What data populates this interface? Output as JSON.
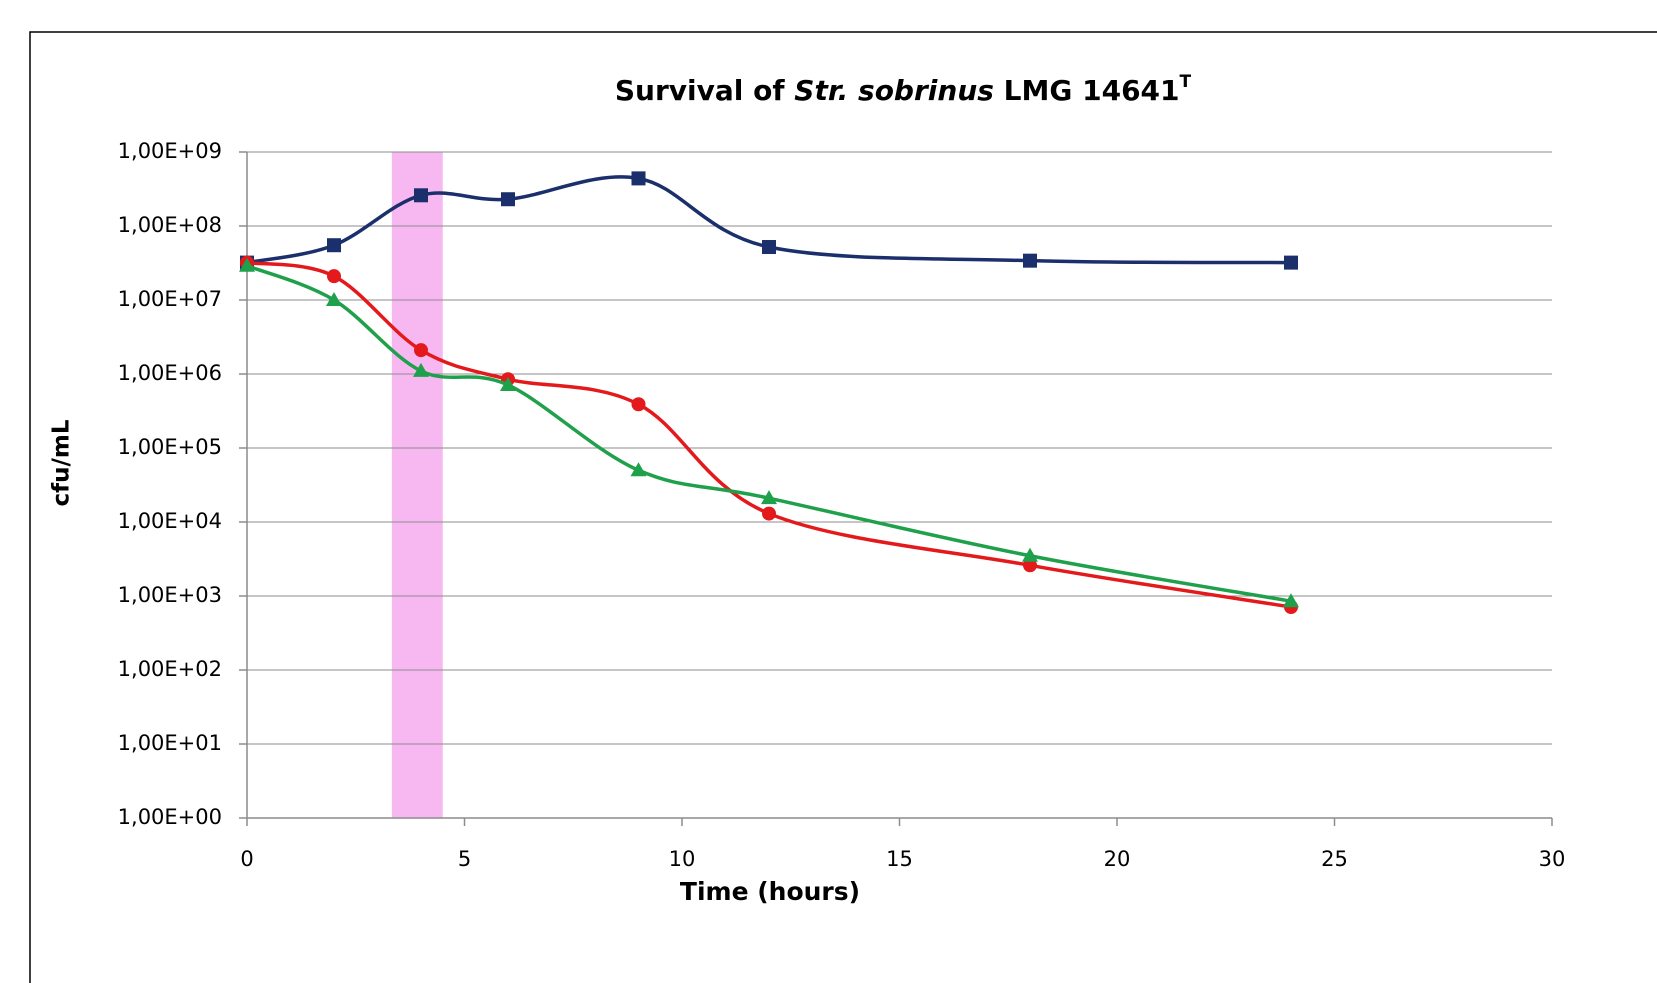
{
  "chart_data": {
    "type": "line",
    "title": [
      "Survival of ",
      "Str. sobrinus",
      " LMG 14641",
      "T"
    ],
    "x_label": "Time (hours)",
    "y_label": "cfu/mL",
    "x": [
      0,
      2,
      4,
      6,
      9,
      12,
      18,
      24
    ],
    "series": [
      {
        "color": "#1a2f6b",
        "marker": "square",
        "values": [
          32000000,
          55000000,
          260000000,
          230000000,
          440000000,
          52000000,
          34000000,
          32000000
        ]
      },
      {
        "color": "#e3191b",
        "marker": "circle",
        "values": [
          32000000,
          21000000,
          2100000,
          850000,
          390000,
          13000,
          2600,
          710
        ]
      },
      {
        "color": "#1fa04a",
        "marker": "triangle",
        "values": [
          29000000,
          10000000,
          1100000,
          710000,
          50000,
          21000,
          3500,
          850
        ]
      }
    ],
    "highlight": {
      "range": [
        3.33,
        4.5
      ],
      "color": "#f7b8f2"
    },
    "xlim": [
      0,
      30
    ],
    "xticks": [
      0,
      5,
      10,
      15,
      20,
      25,
      30
    ],
    "ylim": [
      1,
      1000000000
    ],
    "log_y": true,
    "yticks": [
      {
        "value": 1,
        "label": "1,00E+00"
      },
      {
        "value": 10,
        "label": "1,00E+01"
      },
      {
        "value": 100,
        "label": "1,00E+02"
      },
      {
        "value": 1000,
        "label": "1,00E+03"
      },
      {
        "value": 10000,
        "label": "1,00E+04"
      },
      {
        "value": 100000,
        "label": "1,00E+05"
      },
      {
        "value": 1000000,
        "label": "1,00E+06"
      },
      {
        "value": 10000000,
        "label": "1,00E+07"
      },
      {
        "value": 100000000,
        "label": "1,00E+08"
      },
      {
        "value": 1000000000,
        "label": "1,00E+09"
      }
    ],
    "grid": true
  }
}
